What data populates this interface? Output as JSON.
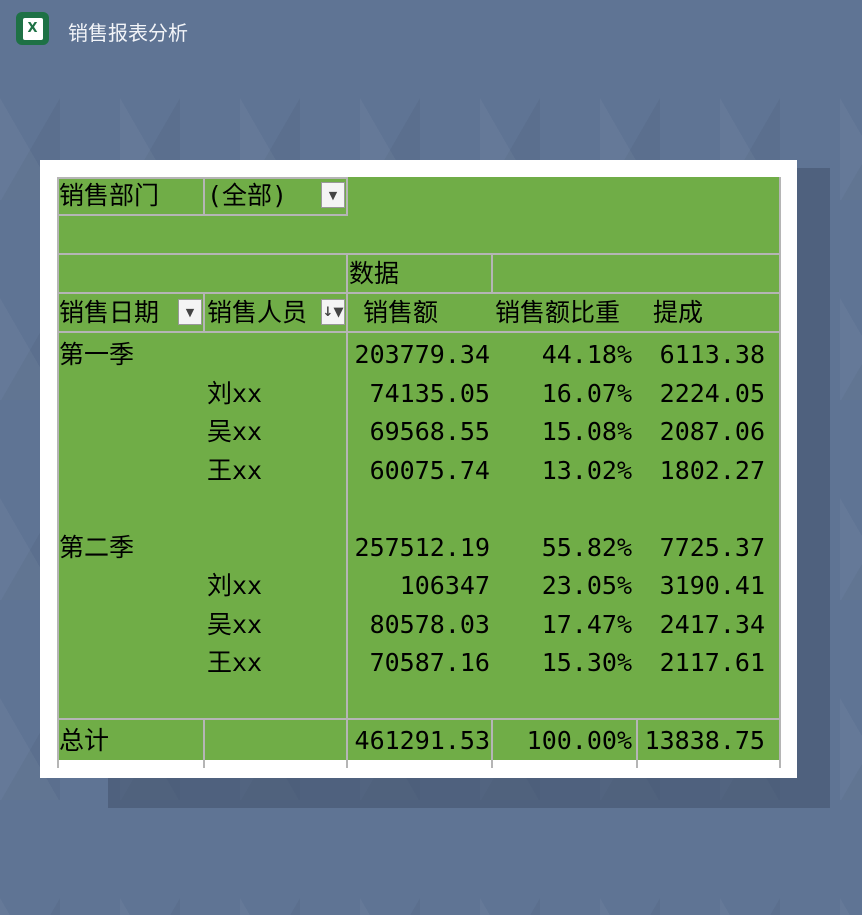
{
  "app": {
    "title": "销售报表分析",
    "icon": "excel-icon"
  },
  "colors": {
    "table_bg": "#70ad47",
    "page_bg": "#5f7494"
  },
  "filter": {
    "label": "销售部门",
    "value": "(全部)"
  },
  "headers": {
    "data": "数据",
    "date": "销售日期",
    "person": "销售人员",
    "amount": "销售额",
    "ratio": "销售额比重",
    "commission": "提成"
  },
  "groups": [
    {
      "name": "第一季",
      "amount": "203779.34",
      "ratio": "44.18%",
      "commission": "6113.38",
      "rows": [
        {
          "name": "刘xx",
          "amount": "74135.05",
          "ratio": "16.07%",
          "commission": "2224.05"
        },
        {
          "name": "吴xx",
          "amount": "69568.55",
          "ratio": "15.08%",
          "commission": "2087.06"
        },
        {
          "name": "王xx",
          "amount": "60075.74",
          "ratio": "13.02%",
          "commission": "1802.27"
        }
      ]
    },
    {
      "name": "第二季",
      "amount": "257512.19",
      "ratio": "55.82%",
      "commission": "7725.37",
      "rows": [
        {
          "name": "刘xx",
          "amount": "106347",
          "ratio": "23.05%",
          "commission": "3190.41"
        },
        {
          "name": "吴xx",
          "amount": "80578.03",
          "ratio": "17.47%",
          "commission": "2417.34"
        },
        {
          "name": "王xx",
          "amount": "70587.16",
          "ratio": "15.30%",
          "commission": "2117.61"
        }
      ]
    }
  ],
  "total": {
    "label": "总计",
    "amount": "461291.53",
    "ratio": "100.00%",
    "commission": "13838.75"
  }
}
